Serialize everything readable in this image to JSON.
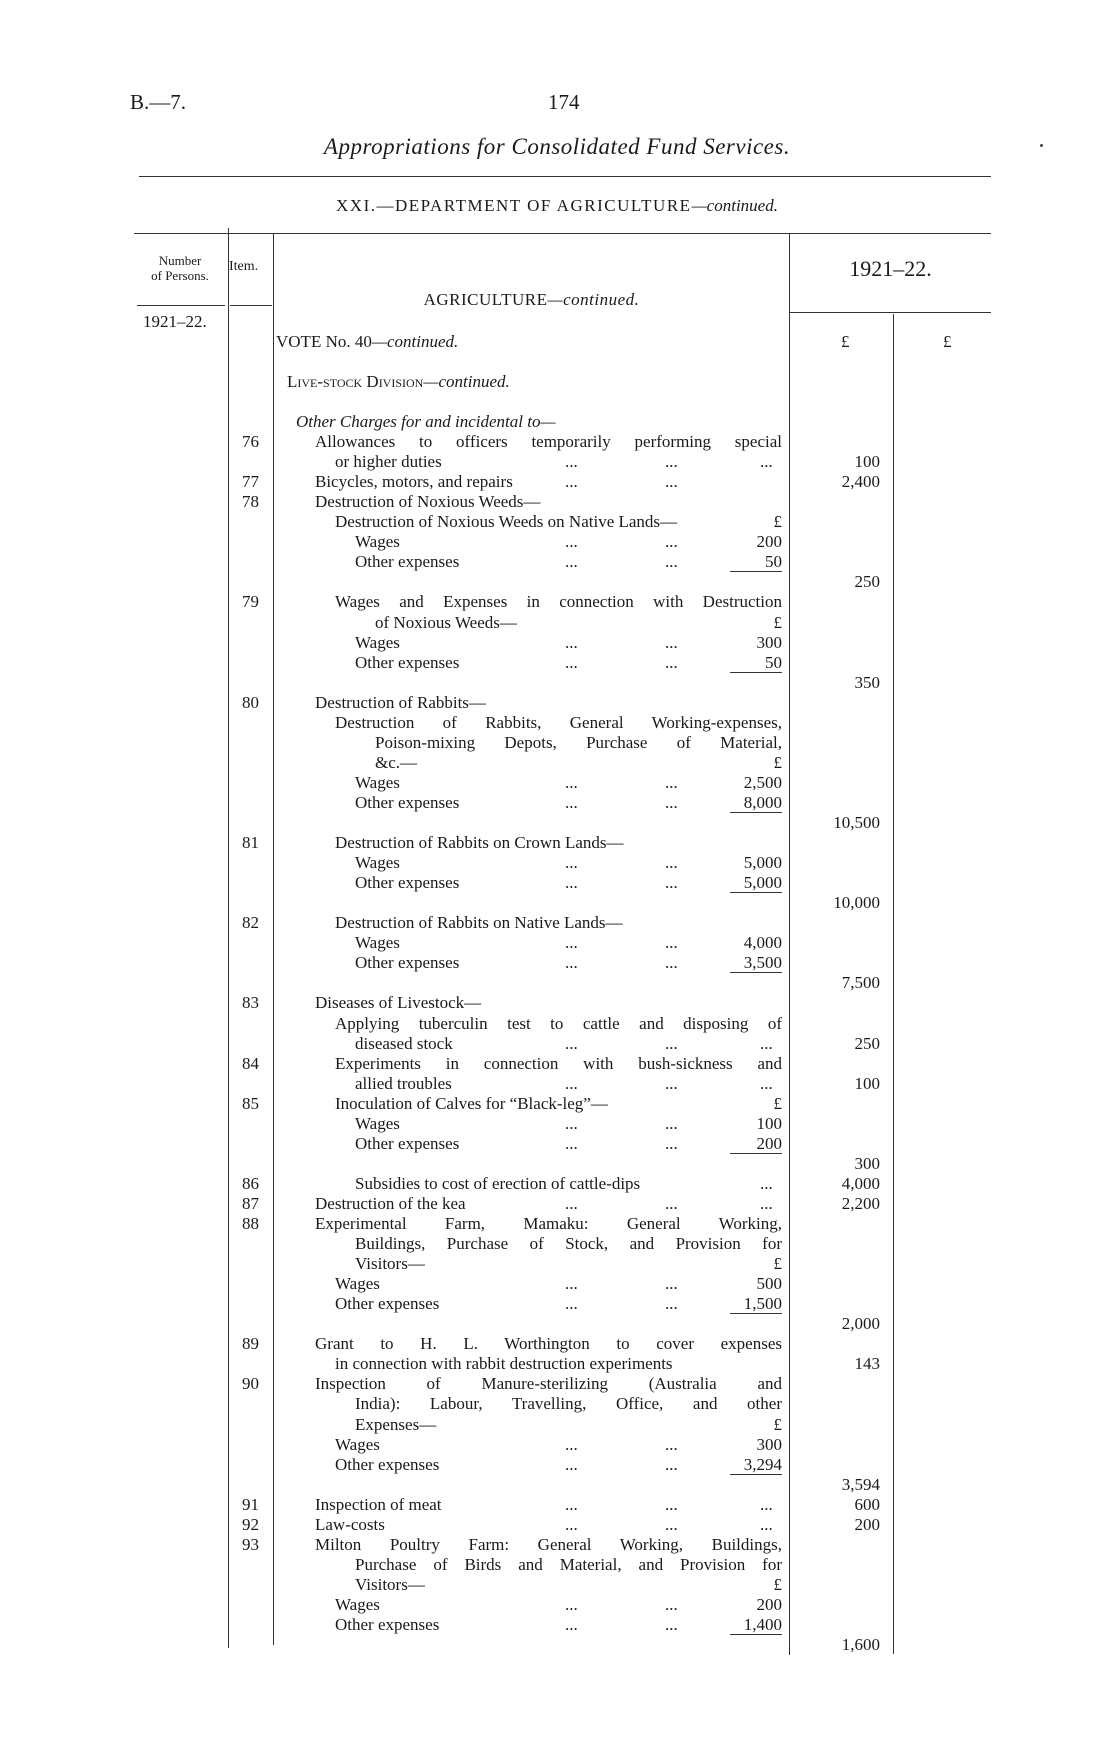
{
  "page": {
    "ref": "B.—7.",
    "number": "174",
    "title": "Appropriations for Consolidated Fund Services.",
    "department": "XXI.—DEPARTMENT OF AGRICULTURE",
    "department_suffix": "—continued."
  },
  "table_header": {
    "number_of_persons_1": "Number",
    "number_of_persons_2": "of Persons.",
    "item": "Item.",
    "year": "1921–22.",
    "section": "AGRICULTURE",
    "section_suffix": "—continued.",
    "persons_year": "1921–22.",
    "vote": "VOTE No. 40",
    "vote_suffix": "—continued.",
    "pound_1": "£",
    "pound_2": "£",
    "division": "Live-stock Division",
    "division_suffix": "—continued."
  },
  "rows": [
    {
      "item": "",
      "text": "Other Charges for and incidental to—",
      "level": 0,
      "italic": true
    },
    {
      "item": "76",
      "text": "Allowances to officers temporarily performing special",
      "level": 1,
      "justify": true
    },
    {
      "item": "",
      "text": "or higher duties",
      "level": 2,
      "leaders": 3,
      "outer": "100"
    },
    {
      "item": "77",
      "text": "Bicycles, motors, and repairs",
      "level": 1,
      "leaders": 2,
      "outer": "2,400"
    },
    {
      "item": "78",
      "text": "Destruction of Noxious Weeds—",
      "level": 1
    },
    {
      "item": "",
      "text": "Destruction of Noxious Weeds on Native Lands—",
      "level": 2,
      "inner": "£"
    },
    {
      "item": "",
      "text": "Wages",
      "level": 3,
      "leaders": 2,
      "inner": "200"
    },
    {
      "item": "",
      "text": "Other expenses",
      "level": 3,
      "leaders": 2,
      "inner": "50"
    },
    {
      "item": "",
      "text": "",
      "level": 0,
      "rule": true,
      "outer": "250"
    },
    {
      "item": "79",
      "text": "Wages and Expenses in connection with Destruction",
      "level": 2,
      "justify": true
    },
    {
      "item": "",
      "text": "of Noxious Weeds—",
      "level": 4,
      "inner": "£"
    },
    {
      "item": "",
      "text": "Wages",
      "level": 3,
      "leaders": 2,
      "inner": "300"
    },
    {
      "item": "",
      "text": "Other expenses",
      "level": 3,
      "leaders": 2,
      "inner": "50"
    },
    {
      "item": "",
      "text": "",
      "level": 0,
      "rule": true,
      "outer": "350"
    },
    {
      "item": "80",
      "text": "Destruction of Rabbits—",
      "level": 1
    },
    {
      "item": "",
      "text": "Destruction of Rabbits, General Working-expenses,",
      "level": 2,
      "justify": true
    },
    {
      "item": "",
      "text": "Poison-mixing Depots, Purchase of Material,",
      "level": 4,
      "justify": true
    },
    {
      "item": "",
      "text": "&c.—",
      "level": 4,
      "inner": "£"
    },
    {
      "item": "",
      "text": "Wages",
      "level": 3,
      "leaders": 2,
      "inner": "2,500"
    },
    {
      "item": "",
      "text": "Other expenses",
      "level": 3,
      "leaders": 2,
      "inner": "8,000"
    },
    {
      "item": "",
      "text": "",
      "level": 0,
      "rule": true,
      "outer": "10,500"
    },
    {
      "item": "81",
      "text": "Destruction of Rabbits on Crown Lands—",
      "level": 2
    },
    {
      "item": "",
      "text": "Wages",
      "level": 3,
      "leaders": 2,
      "inner": "5,000"
    },
    {
      "item": "",
      "text": "Other expenses",
      "level": 3,
      "leaders": 2,
      "inner": "5,000"
    },
    {
      "item": "",
      "text": "",
      "level": 0,
      "rule": true,
      "outer": "10,000"
    },
    {
      "item": "82",
      "text": "Destruction of Rabbits on Native Lands—",
      "level": 2
    },
    {
      "item": "",
      "text": "Wages",
      "level": 3,
      "leaders": 2,
      "inner": "4,000"
    },
    {
      "item": "",
      "text": "Other expenses",
      "level": 3,
      "leaders": 2,
      "inner": "3,500"
    },
    {
      "item": "",
      "text": "",
      "level": 0,
      "rule": true,
      "outer": "7,500"
    },
    {
      "item": "83",
      "text": "Diseases of Livestock—",
      "level": 1
    },
    {
      "item": "",
      "text": "Applying tuberculin test to cattle and disposing of",
      "level": 2,
      "justify": true
    },
    {
      "item": "",
      "text": "diseased stock",
      "level": 3,
      "leaders": 3,
      "outer": "250"
    },
    {
      "item": "84",
      "text": "Experiments in connection with bush-sickness and",
      "level": 2,
      "justify": true
    },
    {
      "item": "",
      "text": "allied troubles",
      "level": 3,
      "leaders": 3,
      "outer": "100"
    },
    {
      "item": "85",
      "text": "Inoculation of Calves for “Black-leg”—",
      "level": 2,
      "inner": "£"
    },
    {
      "item": "",
      "text": "Wages",
      "level": 3,
      "leaders": 2,
      "inner": "100"
    },
    {
      "item": "",
      "text": "Other expenses",
      "level": 3,
      "leaders": 2,
      "inner": "200"
    },
    {
      "item": "",
      "text": "",
      "level": 0,
      "rule": true,
      "outer": "300"
    },
    {
      "item": "86",
      "text": "Subsidies to cost of erection of cattle-dips",
      "level": 3,
      "leaders": 1,
      "outer": "4,000"
    },
    {
      "item": "87",
      "text": "Destruction of the kea",
      "level": 1,
      "leaders": 3,
      "outer": "2,200"
    },
    {
      "item": "88",
      "text": "Experimental Farm, Mamaku: General Working,",
      "level": 1,
      "justify": true
    },
    {
      "item": "",
      "text": "Buildings, Purchase of Stock, and Provision for",
      "level": 3,
      "justify": true
    },
    {
      "item": "",
      "text": "Visitors—",
      "level": 3,
      "inner": "£"
    },
    {
      "item": "",
      "text": "Wages",
      "level": 2,
      "leaders": 2,
      "inner": "500"
    },
    {
      "item": "",
      "text": "Other expenses",
      "level": 2,
      "leaders": 2,
      "inner": "1,500"
    },
    {
      "item": "",
      "text": "",
      "level": 0,
      "rule": true,
      "outer": "2,000"
    },
    {
      "item": "89",
      "text": "Grant to H. L. Worthington to cover expenses",
      "level": 1,
      "justify": true
    },
    {
      "item": "",
      "text": "in connection with rabbit destruction experiments",
      "level": 2,
      "outer": "143"
    },
    {
      "item": "90",
      "text": "Inspection of Manure-sterilizing (Australia and",
      "level": 1,
      "justify": true
    },
    {
      "item": "",
      "text": "India): Labour, Travelling, Office, and other",
      "level": 3,
      "justify": true
    },
    {
      "item": "",
      "text": "Expenses—",
      "level": 3,
      "inner": "£"
    },
    {
      "item": "",
      "text": "Wages",
      "level": 2,
      "leaders": 2,
      "inner": "300"
    },
    {
      "item": "",
      "text": "Other expenses",
      "level": 2,
      "leaders": 2,
      "inner": "3,294"
    },
    {
      "item": "",
      "text": "",
      "level": 0,
      "rule": true,
      "outer": "3,594"
    },
    {
      "item": "91",
      "text": "Inspection of meat",
      "level": 1,
      "leaders": 3,
      "outer": "600"
    },
    {
      "item": "92",
      "text": "Law-costs",
      "level": 1,
      "leaders": 3,
      "outer": "200"
    },
    {
      "item": "93",
      "text": "Milton Poultry Farm: General Working, Buildings,",
      "level": 1,
      "justify": true
    },
    {
      "item": "",
      "text": "Purchase of Birds and Material, and Provision for",
      "level": 3,
      "justify": true
    },
    {
      "item": "",
      "text": "Visitors—",
      "level": 3,
      "inner": "£"
    },
    {
      "item": "",
      "text": "Wages",
      "level": 2,
      "leaders": 2,
      "inner": "200"
    },
    {
      "item": "",
      "text": "Other expenses",
      "level": 2,
      "leaders": 2,
      "inner": "1,400"
    },
    {
      "item": "",
      "text": "",
      "level": 0,
      "rule": true,
      "outer": "1,600"
    }
  ]
}
